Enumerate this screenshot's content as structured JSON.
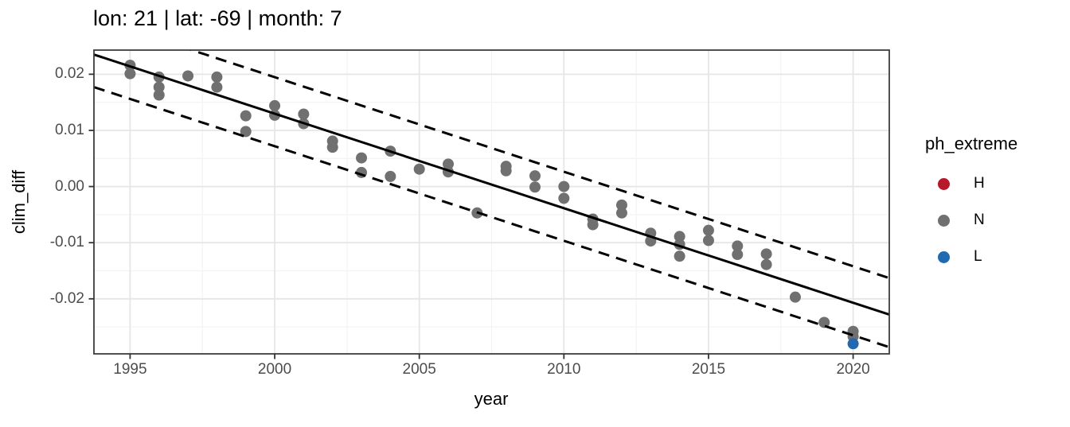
{
  "chart_data": {
    "type": "scatter",
    "title": "lon: 21 | lat: -69 | month: 7",
    "xlabel": "year",
    "ylabel": "clim_diff",
    "grid": "on",
    "legend_position": "right",
    "xlim": [
      1993.75,
      2021.25
    ],
    "ylim": [
      -0.0298,
      0.0243
    ],
    "x_ticks": [
      {
        "v": 1995,
        "label": "1995"
      },
      {
        "v": 2000,
        "label": "2000"
      },
      {
        "v": 2005,
        "label": "2005"
      },
      {
        "v": 2010,
        "label": "2010"
      },
      {
        "v": 2015,
        "label": "2015"
      },
      {
        "v": 2020,
        "label": "2020"
      }
    ],
    "x_minor": [
      1997.5,
      2002.5,
      2007.5,
      2012.5,
      2017.5
    ],
    "y_ticks": [
      {
        "v": 0.02,
        "label": "0.02"
      },
      {
        "v": 0.01,
        "label": "0.01"
      },
      {
        "v": 0.0,
        "label": "0.00"
      },
      {
        "v": -0.01,
        "label": "-0.01"
      },
      {
        "v": -0.02,
        "label": "-0.02"
      }
    ],
    "y_minor": [
      0.015,
      0.005,
      -0.005,
      -0.015,
      -0.025
    ],
    "series": [
      {
        "name": "H",
        "color": "#B6192C",
        "points": []
      },
      {
        "name": "N",
        "color": "#707070",
        "points": [
          [
            1995,
            0.0216
          ],
          [
            1995,
            0.0201
          ],
          [
            1996,
            0.0195
          ],
          [
            1996,
            0.0177
          ],
          [
            1996,
            0.0163
          ],
          [
            1997,
            0.0197
          ],
          [
            1998,
            0.0195
          ],
          [
            1998,
            0.0177
          ],
          [
            1999,
            0.0126
          ],
          [
            1999,
            0.0098
          ],
          [
            2000,
            0.0144
          ],
          [
            2000,
            0.0127
          ],
          [
            2001,
            0.0129
          ],
          [
            2001,
            0.0112
          ],
          [
            2002,
            0.0081
          ],
          [
            2002,
            0.007
          ],
          [
            2003,
            0.0051
          ],
          [
            2003,
            0.0025
          ],
          [
            2004,
            0.0063
          ],
          [
            2004,
            0.0018
          ],
          [
            2005,
            0.0031
          ],
          [
            2006,
            0.004
          ],
          [
            2006,
            0.0026
          ],
          [
            2007,
            -0.0047
          ],
          [
            2008,
            0.0036
          ],
          [
            2008,
            0.0028
          ],
          [
            2009,
            0.0019
          ],
          [
            2009,
            -0.0001
          ],
          [
            2010,
            0.0
          ],
          [
            2010,
            -0.0021
          ],
          [
            2011,
            -0.0058
          ],
          [
            2011,
            -0.0068
          ],
          [
            2012,
            -0.0033
          ],
          [
            2012,
            -0.0047
          ],
          [
            2013,
            -0.0083
          ],
          [
            2013,
            -0.0097
          ],
          [
            2014,
            -0.0089
          ],
          [
            2014,
            -0.0103
          ],
          [
            2014,
            -0.0124
          ],
          [
            2015,
            -0.0078
          ],
          [
            2015,
            -0.0096
          ],
          [
            2016,
            -0.0106
          ],
          [
            2016,
            -0.0121
          ],
          [
            2017,
            -0.012
          ],
          [
            2017,
            -0.0139
          ],
          [
            2018,
            -0.0197
          ],
          [
            2019,
            -0.0242
          ],
          [
            2020,
            -0.0258
          ],
          [
            2020,
            -0.0267
          ]
        ]
      },
      {
        "name": "L",
        "color": "#2269B0",
        "points": [
          [
            2020,
            -0.028
          ]
        ]
      }
    ],
    "fit_lines": {
      "color": "#000000",
      "solid": {
        "value_at_1995": 0.0214,
        "slope_per_year": -0.001684
      },
      "upper_dashed_offset": 0.0065,
      "lower_dashed_offset": -0.0058
    }
  },
  "legend": {
    "title": "ph_extreme",
    "entries": [
      {
        "label": "H",
        "color": "#B6192C"
      },
      {
        "label": "N",
        "color": "#707070"
      },
      {
        "label": "L",
        "color": "#2269B0"
      }
    ]
  },
  "colors": {
    "grid_major": "#E6E6E6",
    "grid_minor": "#F3F3F3",
    "panel_border": "#3C3C3C",
    "tick_mark": "#333333",
    "tick_label": "#4D4D4D",
    "background": "#FFFFFF"
  }
}
